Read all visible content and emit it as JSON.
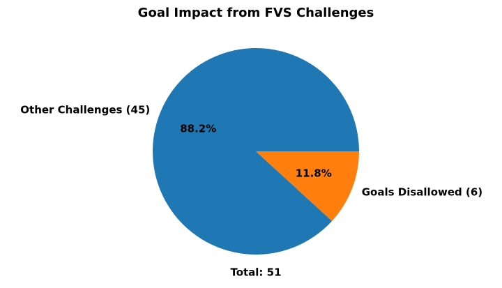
{
  "chart_data": {
    "type": "pie",
    "title": "Goal Impact from FVS Challenges",
    "categories": [
      "Other Challenges (45)",
      "Goals Disallowed (6)"
    ],
    "values": [
      88.2,
      11.8
    ],
    "value_labels": [
      "88.2%",
      "11.8%"
    ],
    "colors": [
      "#1f77b4",
      "#ff7f0e"
    ],
    "annotation": "Total: 51"
  }
}
